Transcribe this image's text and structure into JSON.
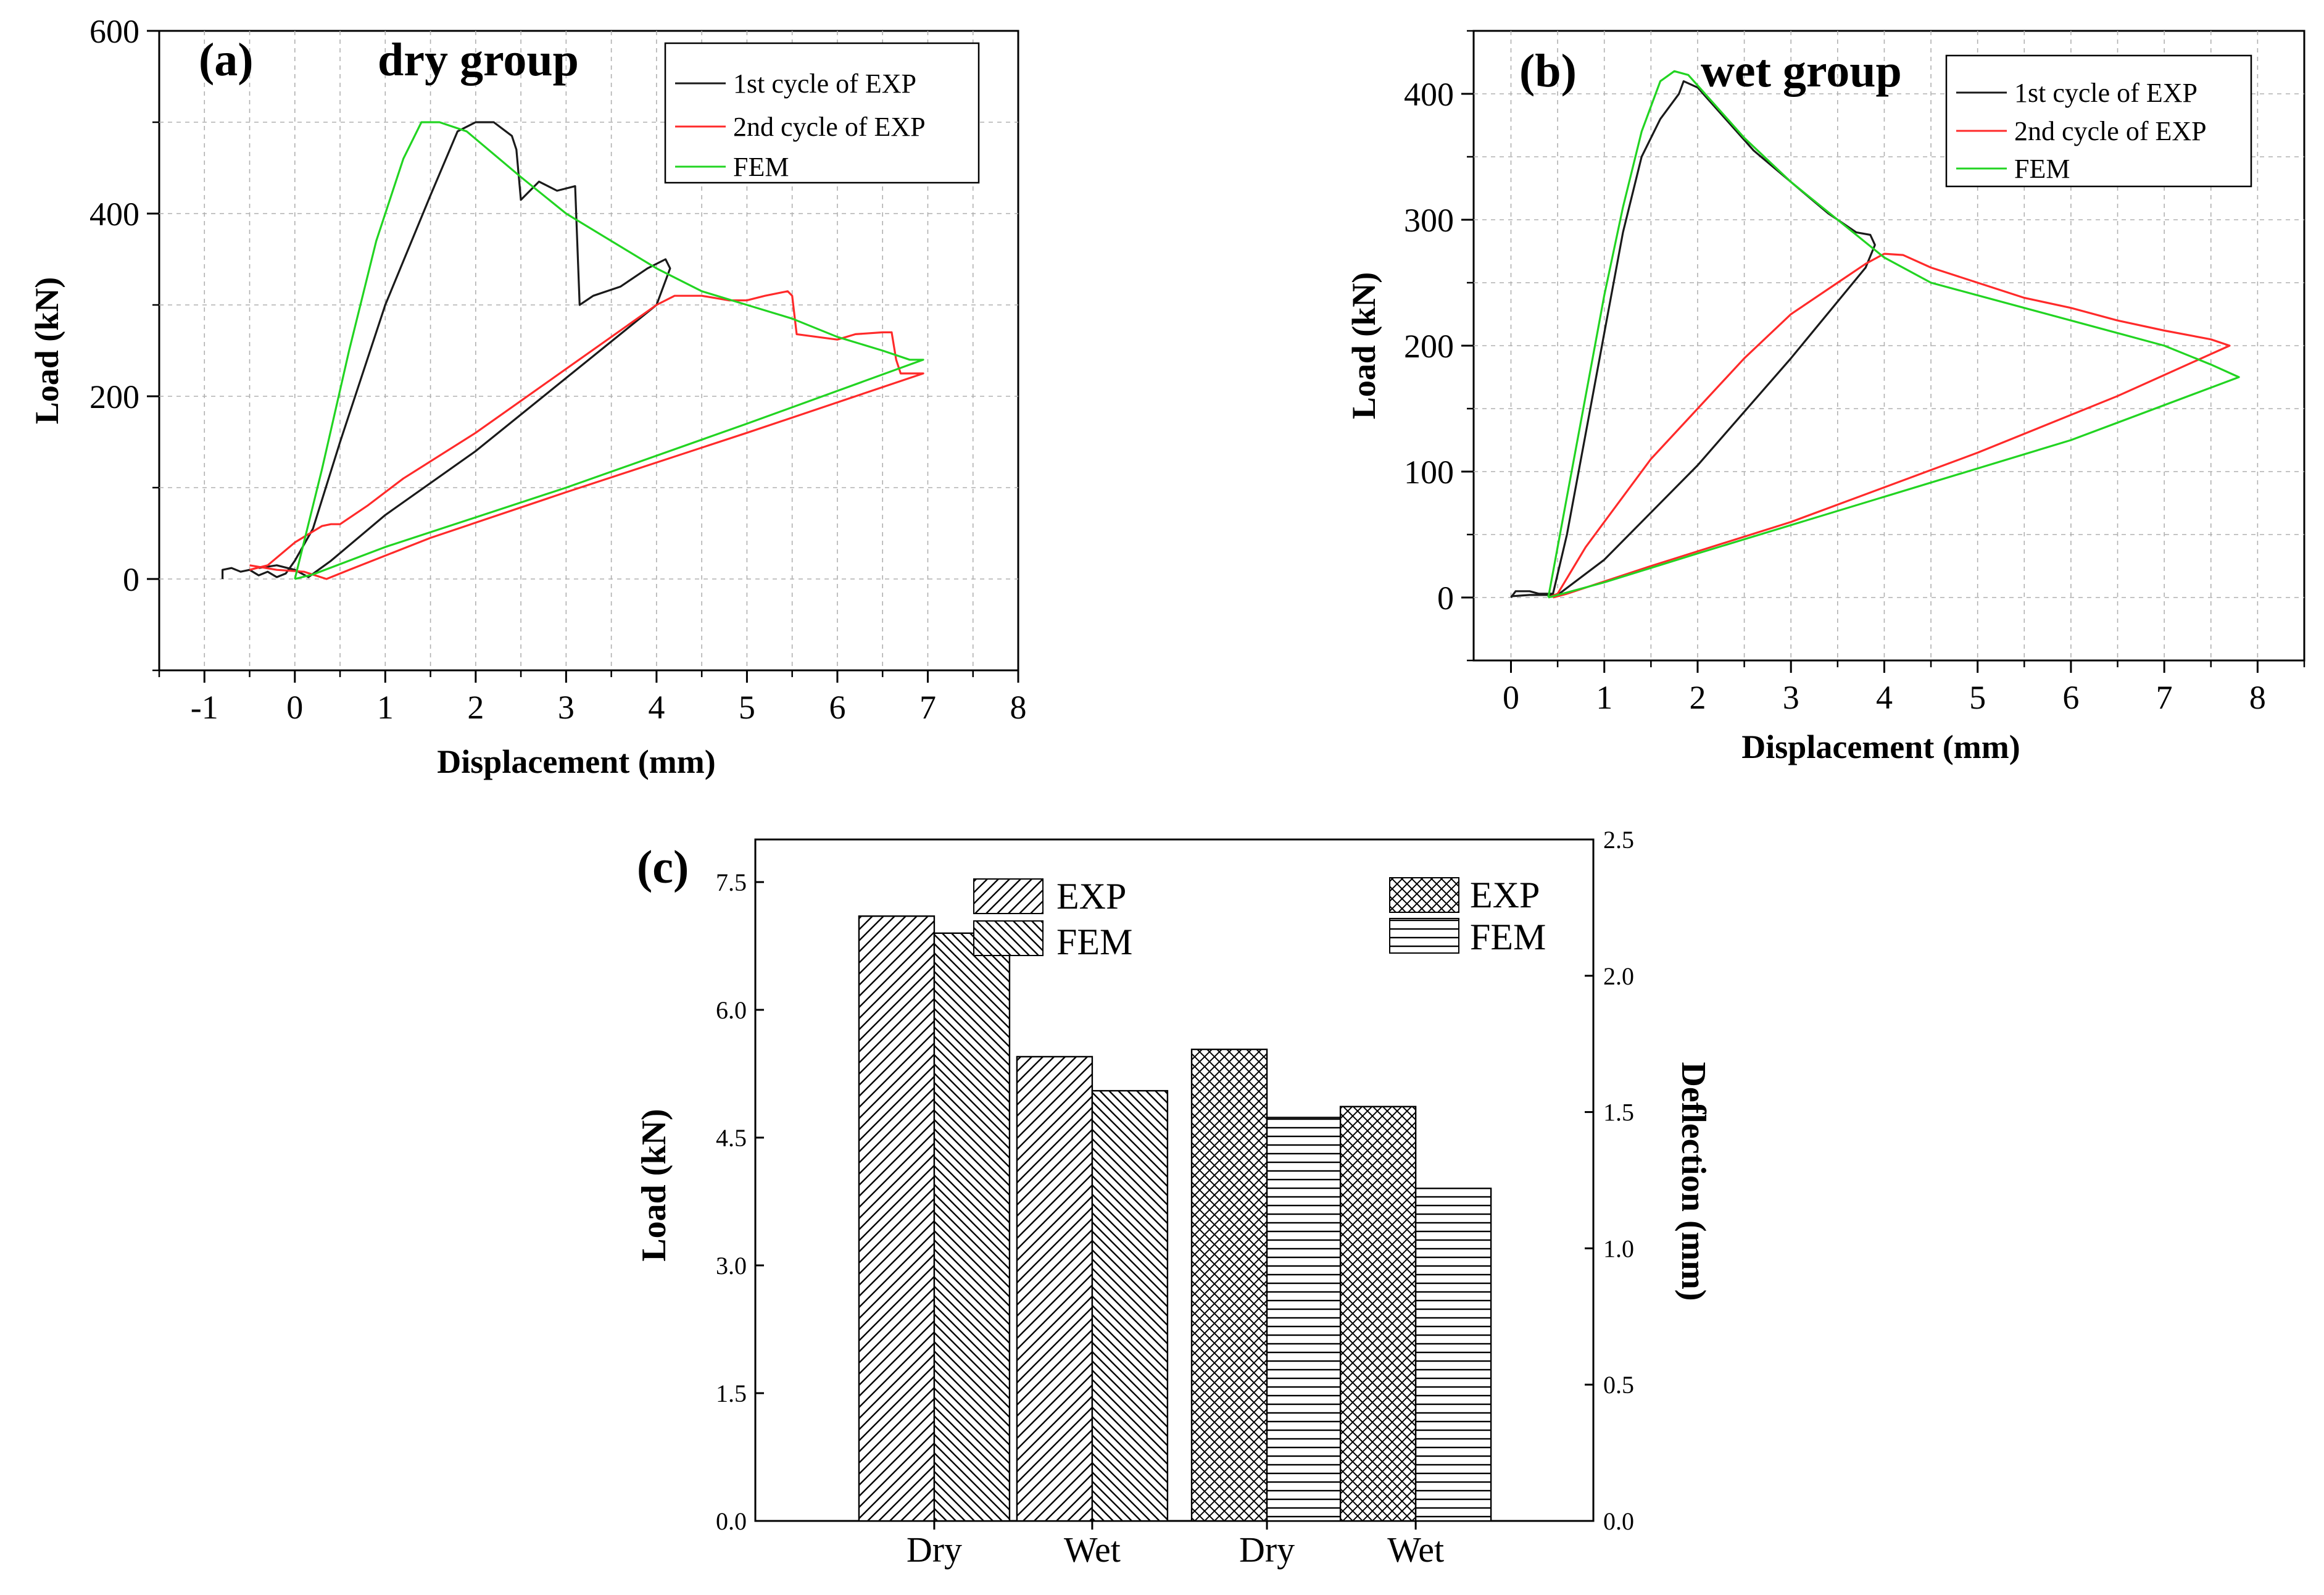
{
  "colors": {
    "exp1": "#1a1a1a",
    "exp2": "#ff2a2a",
    "fem": "#22d422",
    "grid": "#b0b0b0",
    "axis": "#000000",
    "bar_fill": "#ffffff"
  },
  "chart_data": [
    {
      "panel": "(a)",
      "type": "line",
      "title": "dry group",
      "xlabel": "Displacement (mm)",
      "ylabel": "Load (kN)",
      "xlim": [
        -1.5,
        8
      ],
      "ylim": [
        -100,
        600
      ],
      "xticks": [
        -1,
        0,
        1,
        2,
        3,
        4,
        5,
        6,
        7,
        8
      ],
      "xtick_labels": [
        "-1",
        "0",
        "1",
        "2",
        "3",
        "4",
        "5",
        "6",
        "7",
        "8"
      ],
      "yticks": [
        0,
        200,
        400,
        600
      ],
      "ytick_labels": [
        "0",
        "200",
        "400",
        "600"
      ],
      "grid": true,
      "legend_position": "top-right",
      "series": [
        {
          "name": "1st cycle of EXP",
          "color_key": "exp1",
          "points": [
            [
              -0.8,
              0
            ],
            [
              -0.8,
              10
            ],
            [
              -0.7,
              12
            ],
            [
              -0.6,
              8
            ],
            [
              -0.5,
              10
            ],
            [
              -0.4,
              4
            ],
            [
              -0.3,
              8
            ],
            [
              -0.2,
              2
            ],
            [
              -0.1,
              6
            ],
            [
              0.0,
              20
            ],
            [
              0.2,
              55
            ],
            [
              0.5,
              150
            ],
            [
              1.0,
              300
            ],
            [
              1.5,
              420
            ],
            [
              1.8,
              490
            ],
            [
              2.0,
              500
            ],
            [
              2.2,
              500
            ],
            [
              2.4,
              485
            ],
            [
              2.45,
              470
            ],
            [
              2.5,
              415
            ],
            [
              2.7,
              435
            ],
            [
              2.9,
              425
            ],
            [
              3.1,
              430
            ],
            [
              3.15,
              300
            ],
            [
              3.3,
              310
            ],
            [
              3.6,
              320
            ],
            [
              3.9,
              340
            ],
            [
              4.1,
              350
            ],
            [
              4.15,
              340
            ],
            [
              4.0,
              300
            ],
            [
              3.0,
              220
            ],
            [
              2.0,
              140
            ],
            [
              1.0,
              70
            ],
            [
              0.4,
              20
            ],
            [
              0.15,
              2
            ],
            [
              0.0,
              10
            ],
            [
              -0.2,
              15
            ],
            [
              -0.4,
              12
            ]
          ]
        },
        {
          "name": "2nd cycle of EXP",
          "color_key": "exp2",
          "points": [
            [
              -0.5,
              10
            ],
            [
              -0.3,
              15
            ],
            [
              0.0,
              40
            ],
            [
              0.3,
              58
            ],
            [
              0.4,
              60
            ],
            [
              0.5,
              60
            ],
            [
              0.8,
              80
            ],
            [
              1.2,
              110
            ],
            [
              2.0,
              160
            ],
            [
              3.0,
              230
            ],
            [
              4.0,
              300
            ],
            [
              4.2,
              310
            ],
            [
              4.5,
              310
            ],
            [
              4.8,
              305
            ],
            [
              5.0,
              305
            ],
            [
              5.2,
              310
            ],
            [
              5.45,
              315
            ],
            [
              5.5,
              310
            ],
            [
              5.55,
              268
            ],
            [
              6.0,
              262
            ],
            [
              6.2,
              268
            ],
            [
              6.5,
              270
            ],
            [
              6.6,
              270
            ],
            [
              6.65,
              240
            ],
            [
              6.7,
              225
            ],
            [
              6.95,
              225
            ],
            [
              5.0,
              160
            ],
            [
              3.0,
              95
            ],
            [
              1.5,
              45
            ],
            [
              0.6,
              10
            ],
            [
              0.35,
              0
            ],
            [
              0.1,
              8
            ],
            [
              -0.2,
              10
            ],
            [
              -0.5,
              15
            ]
          ]
        },
        {
          "name": "FEM",
          "color_key": "fem",
          "points": [
            [
              0.0,
              0
            ],
            [
              0.3,
              120
            ],
            [
              0.6,
              250
            ],
            [
              0.9,
              370
            ],
            [
              1.2,
              460
            ],
            [
              1.4,
              500
            ],
            [
              1.6,
              500
            ],
            [
              1.9,
              490
            ],
            [
              2.5,
              440
            ],
            [
              3.0,
              400
            ],
            [
              3.5,
              370
            ],
            [
              4.0,
              340
            ],
            [
              4.5,
              315
            ],
            [
              5.0,
              300
            ],
            [
              5.5,
              285
            ],
            [
              6.0,
              265
            ],
            [
              6.5,
              250
            ],
            [
              6.8,
              240
            ],
            [
              6.95,
              240
            ],
            [
              5.0,
              170
            ],
            [
              3.0,
              100
            ],
            [
              1.0,
              35
            ],
            [
              0.2,
              5
            ],
            [
              0.0,
              0
            ]
          ]
        }
      ]
    },
    {
      "panel": "(b)",
      "type": "line",
      "title": "wet group",
      "xlabel": "Displacement (mm)",
      "ylabel": "Load (kN)",
      "xlim": [
        -0.4,
        8.5
      ],
      "ylim": [
        -50,
        450
      ],
      "xticks": [
        0,
        1,
        2,
        3,
        4,
        5,
        6,
        7,
        8
      ],
      "xtick_labels": [
        "0",
        "1",
        "2",
        "3",
        "4",
        "5",
        "6",
        "7",
        "8"
      ],
      "yticks": [
        0,
        100,
        200,
        300,
        400
      ],
      "ytick_labels": [
        "0",
        "100",
        "200",
        "300",
        "400"
      ],
      "grid": true,
      "legend_position": "top-right",
      "series": [
        {
          "name": "1st cycle of EXP",
          "color_key": "exp1",
          "points": [
            [
              0.0,
              0
            ],
            [
              0.05,
              5
            ],
            [
              0.2,
              5
            ],
            [
              0.3,
              3
            ],
            [
              0.45,
              3
            ],
            [
              0.6,
              50
            ],
            [
              0.8,
              130
            ],
            [
              1.0,
              210
            ],
            [
              1.2,
              290
            ],
            [
              1.4,
              350
            ],
            [
              1.6,
              380
            ],
            [
              1.8,
              400
            ],
            [
              1.85,
              410
            ],
            [
              2.0,
              405
            ],
            [
              2.3,
              380
            ],
            [
              2.6,
              355
            ],
            [
              3.0,
              330
            ],
            [
              3.4,
              305
            ],
            [
              3.7,
              290
            ],
            [
              3.85,
              288
            ],
            [
              3.9,
              280
            ],
            [
              3.8,
              262
            ],
            [
              3.0,
              190
            ],
            [
              2.0,
              105
            ],
            [
              1.0,
              30
            ],
            [
              0.5,
              2
            ],
            [
              0.2,
              2
            ],
            [
              0.0,
              1
            ]
          ]
        },
        {
          "name": "2nd cycle of EXP",
          "color_key": "exp2",
          "points": [
            [
              0.4,
              0
            ],
            [
              0.5,
              3
            ],
            [
              0.8,
              40
            ],
            [
              1.0,
              60
            ],
            [
              1.5,
              110
            ],
            [
              2.0,
              150
            ],
            [
              2.5,
              190
            ],
            [
              3.0,
              225
            ],
            [
              3.5,
              250
            ],
            [
              3.8,
              265
            ],
            [
              4.0,
              273
            ],
            [
              4.2,
              272
            ],
            [
              4.5,
              262
            ],
            [
              5.0,
              250
            ],
            [
              5.5,
              238
            ],
            [
              6.0,
              230
            ],
            [
              6.5,
              220
            ],
            [
              7.0,
              212
            ],
            [
              7.5,
              205
            ],
            [
              7.7,
              200
            ],
            [
              6.5,
              160
            ],
            [
              5.0,
              115
            ],
            [
              3.0,
              60
            ],
            [
              1.5,
              25
            ],
            [
              0.6,
              3
            ],
            [
              0.45,
              0
            ]
          ]
        },
        {
          "name": "FEM",
          "color_key": "fem",
          "points": [
            [
              0.4,
              0
            ],
            [
              0.6,
              80
            ],
            [
              0.8,
              160
            ],
            [
              1.0,
              240
            ],
            [
              1.2,
              310
            ],
            [
              1.4,
              370
            ],
            [
              1.6,
              410
            ],
            [
              1.75,
              418
            ],
            [
              1.9,
              415
            ],
            [
              2.2,
              390
            ],
            [
              2.5,
              365
            ],
            [
              3.0,
              330
            ],
            [
              3.5,
              300
            ],
            [
              4.0,
              270
            ],
            [
              4.5,
              250
            ],
            [
              5.0,
              240
            ],
            [
              5.5,
              230
            ],
            [
              6.0,
              220
            ],
            [
              6.5,
              210
            ],
            [
              7.0,
              200
            ],
            [
              7.5,
              185
            ],
            [
              7.8,
              175
            ],
            [
              6.0,
              125
            ],
            [
              4.0,
              80
            ],
            [
              2.0,
              35
            ],
            [
              1.0,
              12
            ],
            [
              0.4,
              0
            ]
          ]
        }
      ]
    },
    {
      "panel": "(c)",
      "type": "bar",
      "xlabel": "",
      "ylabel_left": "Load (kN)",
      "ylabel_right": "Deflection (mm)",
      "ylim_left": [
        0,
        8
      ],
      "yticks_left": [
        0.0,
        1.5,
        3.0,
        4.5,
        6.0,
        7.5
      ],
      "ytick_labels_left": [
        "0.0",
        "1.5",
        "3.0",
        "4.5",
        "6.0",
        "7.5"
      ],
      "ylim_right": [
        0,
        2.5
      ],
      "yticks_right": [
        0.0,
        0.5,
        1.0,
        1.5,
        2.0,
        2.5
      ],
      "ytick_labels_right": [
        "0.0",
        "0.5",
        "1.0",
        "1.5",
        "2.0",
        "2.5"
      ],
      "categories": [
        "Dry",
        "Wet",
        "Dry",
        "Wet"
      ],
      "grid": false,
      "legend_position": "top",
      "groups": [
        {
          "category": "Dry",
          "axis": "left",
          "bars": [
            {
              "series": "EXP",
              "value": 7.1,
              "pattern": "diag-left"
            },
            {
              "series": "FEM",
              "value": 6.9,
              "pattern": "diag-right"
            }
          ]
        },
        {
          "category": "Wet",
          "axis": "left",
          "bars": [
            {
              "series": "EXP",
              "value": 5.45,
              "pattern": "diag-left"
            },
            {
              "series": "FEM",
              "value": 5.05,
              "pattern": "diag-right"
            }
          ]
        },
        {
          "category": "Dry",
          "axis": "right",
          "bars": [
            {
              "series": "EXP",
              "value": 1.73,
              "pattern": "crosshatch"
            },
            {
              "series": "FEM",
              "value": 1.48,
              "pattern": "horizontal"
            }
          ]
        },
        {
          "category": "Wet",
          "axis": "right",
          "bars": [
            {
              "series": "EXP",
              "value": 1.52,
              "pattern": "crosshatch"
            },
            {
              "series": "FEM",
              "value": 1.22,
              "pattern": "horizontal"
            }
          ]
        }
      ],
      "legend_left": [
        {
          "label": "EXP",
          "pattern": "diag-left"
        },
        {
          "label": "FEM",
          "pattern": "diag-right"
        }
      ],
      "legend_right": [
        {
          "label": "EXP",
          "pattern": "crosshatch"
        },
        {
          "label": "FEM",
          "pattern": "horizontal"
        }
      ]
    }
  ]
}
